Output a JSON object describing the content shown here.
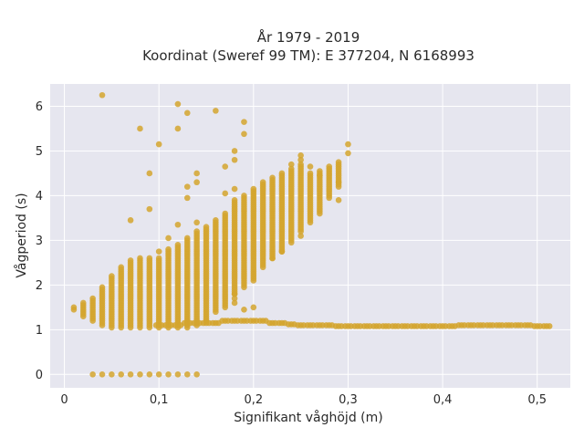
{
  "chart_data": {
    "type": "scatter",
    "title_line1": "År 1979 - 2019",
    "title_line2": "Koordinat (Sweref 99 TM): E 377204, N 6168993",
    "xlabel": "Signifikant våghöjd (m)",
    "ylabel": "Vågperiod (s)",
    "xlim": [
      -0.015,
      0.535
    ],
    "ylim": [
      -0.3,
      6.5
    ],
    "xticks": [
      0,
      0.1,
      0.2,
      0.3,
      0.4,
      0.5
    ],
    "xtick_labels": [
      "0",
      "0,1",
      "0,2",
      "0,3",
      "0,4",
      "0,5"
    ],
    "yticks": [
      0,
      1,
      2,
      3,
      4,
      5,
      6
    ],
    "ytick_labels": [
      "0",
      "1",
      "2",
      "3",
      "4",
      "5",
      "6"
    ],
    "grid": true,
    "colors": {
      "marker": "#d4a52e",
      "plot_bg": "#e6e6ef",
      "grid": "#ffffff"
    },
    "columns": [
      {
        "x": 0.01,
        "ymin": 1.45,
        "ymax": 1.5
      },
      {
        "x": 0.02,
        "ymin": 1.3,
        "ymax": 1.6
      },
      {
        "x": 0.03,
        "ymin": 1.2,
        "ymax": 1.7
      },
      {
        "x": 0.04,
        "ymin": 1.1,
        "ymax": 1.95
      },
      {
        "x": 0.05,
        "ymin": 1.05,
        "ymax": 2.2
      },
      {
        "x": 0.06,
        "ymin": 1.05,
        "ymax": 2.4
      },
      {
        "x": 0.07,
        "ymin": 1.05,
        "ymax": 2.55
      },
      {
        "x": 0.08,
        "ymin": 1.05,
        "ymax": 2.6
      },
      {
        "x": 0.09,
        "ymin": 1.05,
        "ymax": 2.6
      },
      {
        "x": 0.1,
        "ymin": 1.05,
        "ymax": 2.6
      },
      {
        "x": 0.11,
        "ymin": 1.05,
        "ymax": 2.8
      },
      {
        "x": 0.12,
        "ymin": 1.05,
        "ymax": 2.9
      },
      {
        "x": 0.13,
        "ymin": 1.05,
        "ymax": 3.05
      },
      {
        "x": 0.14,
        "ymin": 1.1,
        "ymax": 3.2
      },
      {
        "x": 0.15,
        "ymin": 1.2,
        "ymax": 3.3
      },
      {
        "x": 0.16,
        "ymin": 1.4,
        "ymax": 3.45
      },
      {
        "x": 0.17,
        "ymin": 1.55,
        "ymax": 3.55
      },
      {
        "x": 0.18,
        "ymin": 1.8,
        "ymax": 3.9
      },
      {
        "x": 0.19,
        "ymin": 1.95,
        "ymax": 4.0
      },
      {
        "x": 0.2,
        "ymin": 2.1,
        "ymax": 4.15
      },
      {
        "x": 0.21,
        "ymin": 2.45,
        "ymax": 4.3
      },
      {
        "x": 0.22,
        "ymin": 2.6,
        "ymax": 4.4
      },
      {
        "x": 0.23,
        "ymin": 2.75,
        "ymax": 4.5
      },
      {
        "x": 0.24,
        "ymin": 3.0,
        "ymax": 4.6
      },
      {
        "x": 0.25,
        "ymin": 3.2,
        "ymax": 4.7
      },
      {
        "x": 0.26,
        "ymin": 3.4,
        "ymax": 4.5
      },
      {
        "x": 0.27,
        "ymin": 3.6,
        "ymax": 4.55
      },
      {
        "x": 0.28,
        "ymin": 4.0,
        "ymax": 4.65
      },
      {
        "x": 0.29,
        "ymin": 4.2,
        "ymax": 4.75
      }
    ],
    "band": {
      "x_from": 0.1,
      "x_to": 0.51,
      "step": 0.01,
      "y": [
        1.1,
        1.1,
        1.1,
        1.15,
        1.15,
        1.15,
        1.15,
        1.2,
        1.2,
        1.2,
        1.2,
        1.2,
        1.15,
        1.15,
        1.12,
        1.1,
        1.1,
        1.1,
        1.1,
        1.08,
        1.08,
        1.08,
        1.08,
        1.08,
        1.08,
        1.08,
        1.08,
        1.08,
        1.08,
        1.08,
        1.08,
        1.08,
        1.1,
        1.1,
        1.1,
        1.1,
        1.1,
        1.1,
        1.1,
        1.1,
        1.08,
        1.08
      ]
    },
    "zero_row": {
      "x": [
        0.03,
        0.04,
        0.05,
        0.06,
        0.07,
        0.08,
        0.09,
        0.1,
        0.11,
        0.12,
        0.13,
        0.14
      ],
      "y": 0
    },
    "scatter_points": [
      [
        0.04,
        6.25
      ],
      [
        0.12,
        6.05
      ],
      [
        0.13,
        5.85
      ],
      [
        0.16,
        5.9
      ],
      [
        0.19,
        5.65
      ],
      [
        0.19,
        5.38
      ],
      [
        0.08,
        5.5
      ],
      [
        0.1,
        5.15
      ],
      [
        0.12,
        5.5
      ],
      [
        0.18,
        5.0
      ],
      [
        0.18,
        4.8
      ],
      [
        0.17,
        4.65
      ],
      [
        0.09,
        4.5
      ],
      [
        0.14,
        4.5
      ],
      [
        0.14,
        4.3
      ],
      [
        0.13,
        4.2
      ],
      [
        0.13,
        3.95
      ],
      [
        0.17,
        4.05
      ],
      [
        0.18,
        4.15
      ],
      [
        0.09,
        3.7
      ],
      [
        0.07,
        3.45
      ],
      [
        0.12,
        3.35
      ],
      [
        0.11,
        3.05
      ],
      [
        0.1,
        2.75
      ],
      [
        0.17,
        3.6
      ],
      [
        0.14,
        3.4
      ],
      [
        0.18,
        1.6
      ],
      [
        0.18,
        1.7
      ],
      [
        0.19,
        1.45
      ],
      [
        0.17,
        1.5
      ],
      [
        0.18,
        1.8
      ],
      [
        0.2,
        1.5
      ],
      [
        0.3,
        5.15
      ],
      [
        0.3,
        4.95
      ],
      [
        0.29,
        4.3
      ],
      [
        0.29,
        3.9
      ],
      [
        0.28,
        3.95
      ],
      [
        0.25,
        4.9
      ],
      [
        0.25,
        4.8
      ],
      [
        0.26,
        4.65
      ],
      [
        0.27,
        4.45
      ],
      [
        0.24,
        4.7
      ],
      [
        0.25,
        3.1
      ],
      [
        0.24,
        2.95
      ],
      [
        0.23,
        2.75
      ],
      [
        0.22,
        2.6
      ],
      [
        0.21,
        2.4
      ]
    ]
  }
}
